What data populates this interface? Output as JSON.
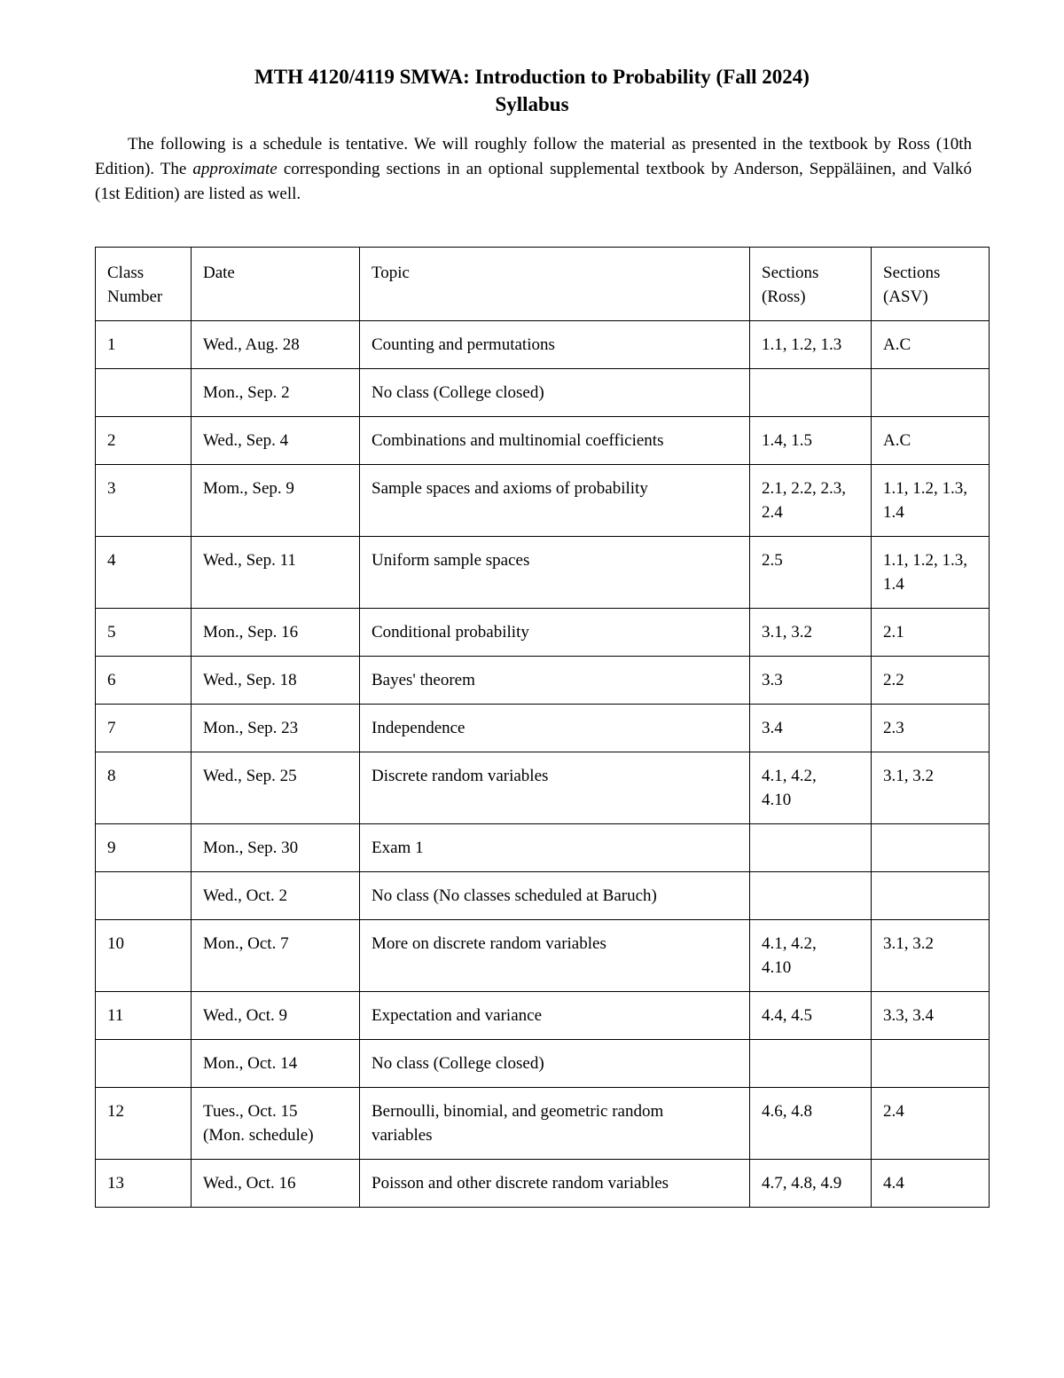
{
  "page": {
    "background_color": "#ffffff",
    "text_color": "#000000"
  },
  "title": {
    "line1": "MTH 4120/4119 SMWA: Introduction to Probability (Fall 2024)",
    "line2": "Syllabus"
  },
  "intro": {
    "text_before_italic": "The following is a schedule is tentative. We will roughly follow the material as presented in the textbook by Ross (10th Edition). The ",
    "italic_word": "approximate",
    "text_after_italic": " corresponding sections in an optional supplemental textbook by Anderson, Seppäläinen, and Valkó (1st Edition) are listed as well."
  },
  "schedule_table": {
    "headers": [
      "Class\nNumber",
      "Date",
      "Topic",
      "Sections\n(Ross)",
      "Sections\n(ASV)"
    ],
    "rows": [
      {
        "class_number": "1",
        "date": "Wed., Aug. 28",
        "topic": "Counting and permutations",
        "sections_ross": "1.1, 1.2, 1.3",
        "sections_asv": "A.C"
      },
      {
        "class_number": "",
        "date": "Mon., Sep. 2",
        "topic": "No class (College closed)",
        "sections_ross": "",
        "sections_asv": ""
      },
      {
        "class_number": "2",
        "date": "Wed., Sep. 4",
        "topic": "Combinations and multinomial coefficients",
        "sections_ross": "1.4, 1.5",
        "sections_asv": "A.C"
      },
      {
        "class_number": "3",
        "date": "Mom., Sep. 9",
        "topic": "Sample spaces and axioms of probability",
        "sections_ross": "2.1, 2.2, 2.3,\n2.4",
        "sections_asv": "1.1, 1.2, 1.3,\n1.4"
      },
      {
        "class_number": "4",
        "date": "Wed., Sep. 11",
        "topic": "Uniform sample spaces",
        "sections_ross": "2.5",
        "sections_asv": "1.1, 1.2, 1.3,\n1.4"
      },
      {
        "class_number": "5",
        "date": "Mon., Sep. 16",
        "topic": "Conditional probability",
        "sections_ross": "3.1, 3.2",
        "sections_asv": "2.1"
      },
      {
        "class_number": "6",
        "date": "Wed., Sep. 18",
        "topic": "Bayes' theorem",
        "sections_ross": "3.3",
        "sections_asv": "2.2"
      },
      {
        "class_number": "7",
        "date": "Mon., Sep. 23",
        "topic": "Independence",
        "sections_ross": "3.4",
        "sections_asv": "2.3"
      },
      {
        "class_number": "8",
        "date": "Wed., Sep. 25",
        "topic": "Discrete random variables",
        "sections_ross": "4.1, 4.2,\n4.10",
        "sections_asv": "3.1, 3.2"
      },
      {
        "class_number": "9",
        "date": "Mon., Sep. 30",
        "topic": "Exam 1",
        "sections_ross": "",
        "sections_asv": ""
      },
      {
        "class_number": "",
        "date": "Wed., Oct. 2",
        "topic": "No class (No classes scheduled at Baruch)",
        "sections_ross": "",
        "sections_asv": ""
      },
      {
        "class_number": "10",
        "date": "Mon., Oct. 7",
        "topic": "More on discrete random variables",
        "sections_ross": "4.1, 4.2,\n4.10",
        "sections_asv": "3.1, 3.2"
      },
      {
        "class_number": "11",
        "date": "Wed., Oct. 9",
        "topic": "Expectation and variance",
        "sections_ross": "4.4, 4.5",
        "sections_asv": "3.3, 3.4"
      },
      {
        "class_number": "",
        "date": "Mon., Oct. 14",
        "topic": "No class (College closed)",
        "sections_ross": "",
        "sections_asv": ""
      },
      {
        "class_number": "12",
        "date": "Tues., Oct. 15\n(Mon. schedule)",
        "topic": "Bernoulli, binomial, and geometric random\nvariables",
        "sections_ross": "4.6, 4.8",
        "sections_asv": "2.4"
      },
      {
        "class_number": "13",
        "date": "Wed., Oct. 16",
        "topic": "Poisson and other discrete random variables",
        "sections_ross": "4.7, 4.8, 4.9",
        "sections_asv": "4.4"
      }
    ]
  }
}
